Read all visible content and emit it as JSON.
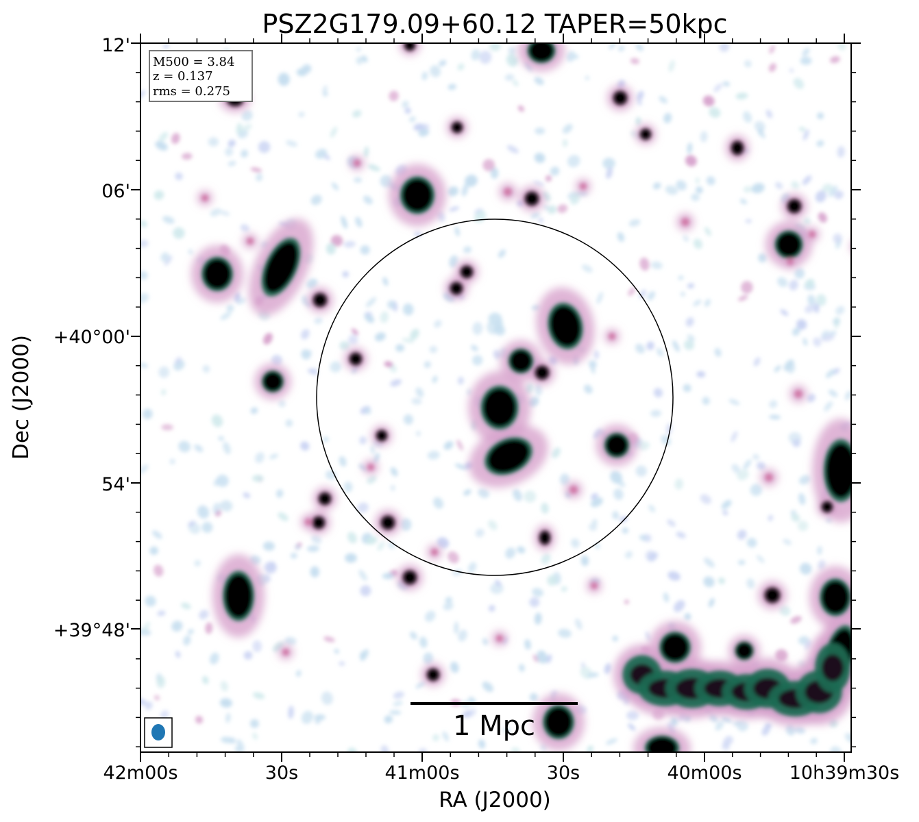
{
  "figure": {
    "title": "PSZ2G179.09+60.12 TAPER=50kpc",
    "xlabel": "RA (J2000)",
    "ylabel": "Dec (J2000)",
    "x_ticks": [
      "42m00s",
      "30s",
      "41m00s",
      "30s",
      "40m00s",
      "10h39m30s"
    ],
    "y_ticks": [
      "12'",
      "06'",
      "+40°00'",
      "54'",
      "+39°48'"
    ],
    "info_box": {
      "line1": "M500 = 3.84",
      "line2": "z = 0.137",
      "line3": "rms = 0.275"
    },
    "scale_bar_label": "1 Mpc",
    "colors": {
      "frame": "#000000",
      "beam": "#1f77b4",
      "low": "#c7dff0",
      "mid": "#d7a2cc",
      "high": "#1f6a52",
      "peak": "#050505"
    },
    "icons": {
      "beam": "beam-ellipse-icon",
      "r500_circle": "r500-circle-icon"
    }
  }
}
